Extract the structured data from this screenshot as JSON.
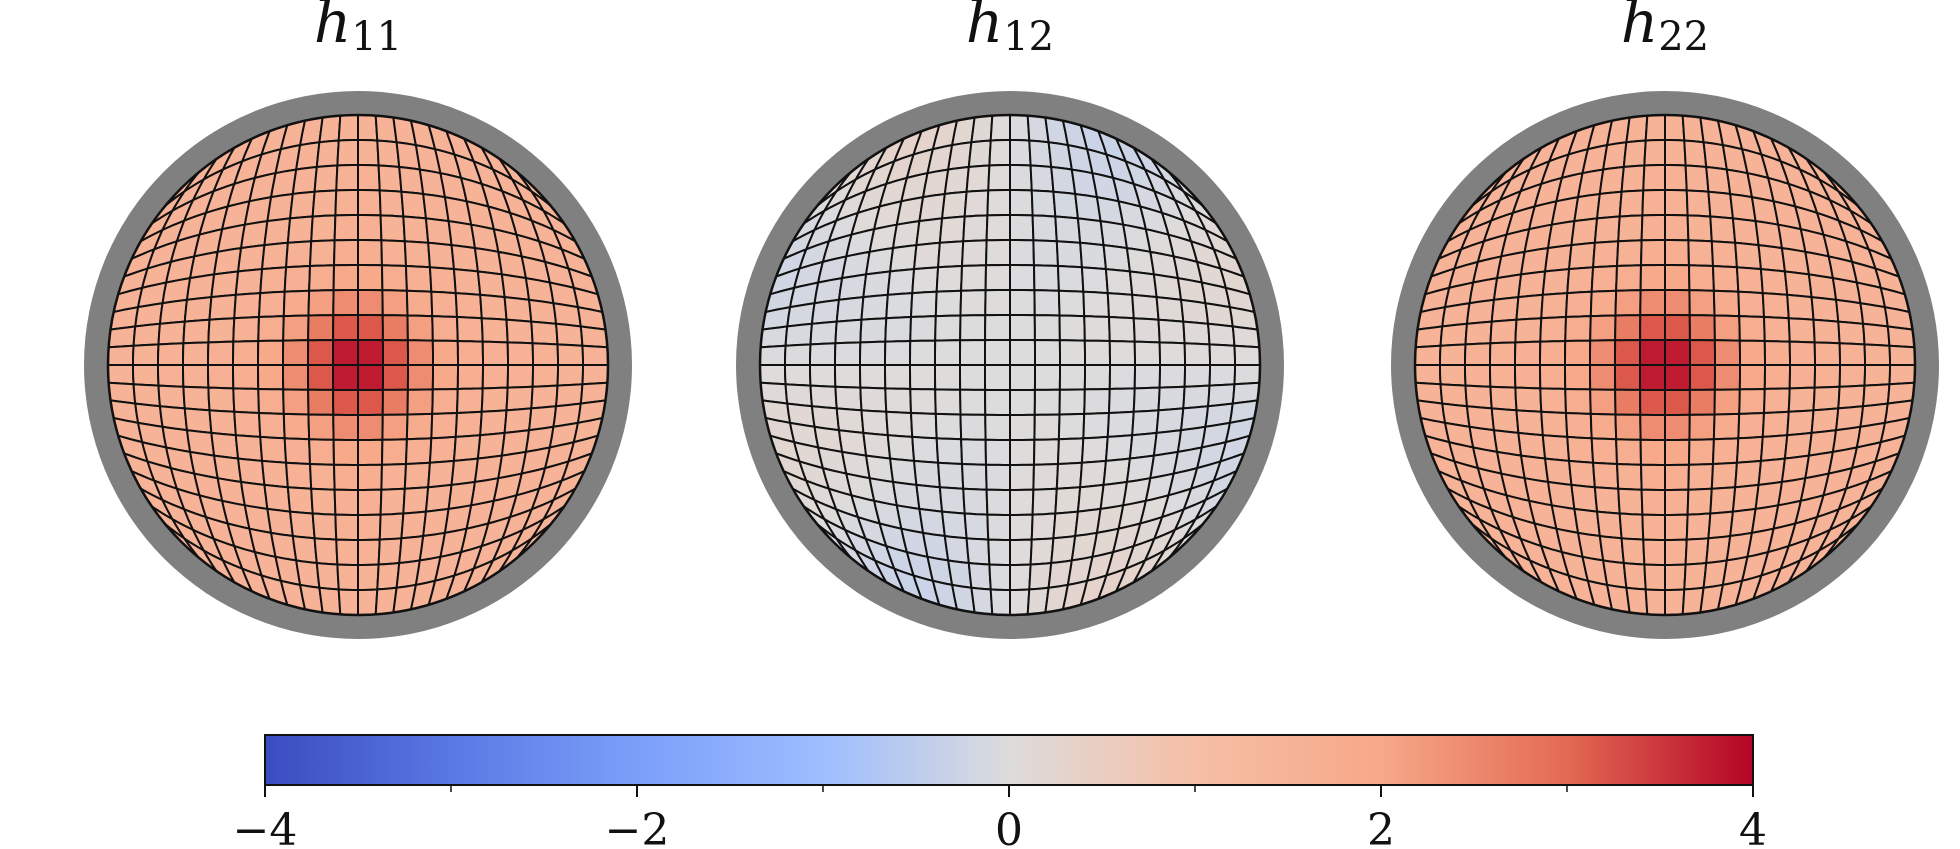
{
  "chart_data": {
    "type": "heatmap",
    "colormap": "coolwarm",
    "panels": [
      {
        "title_base": "h",
        "title_sub": "11",
        "peak": 4.0,
        "edge": 1.5,
        "mode": "center"
      },
      {
        "title_base": "h",
        "title_sub": "12",
        "peak": 0.0,
        "edge": -0.4,
        "mode": "diag"
      },
      {
        "title_base": "h",
        "title_sub": "22",
        "peak": 4.0,
        "edge": 1.5,
        "mode": "center"
      }
    ],
    "colorbar": {
      "range": [
        -4,
        4
      ],
      "ticks": [
        -4,
        -2,
        0,
        2,
        4
      ],
      "minor_ticks": [
        -3,
        -1,
        1,
        3
      ],
      "tick_labels": [
        "−4",
        "−2",
        "0",
        "2",
        "4"
      ]
    }
  }
}
